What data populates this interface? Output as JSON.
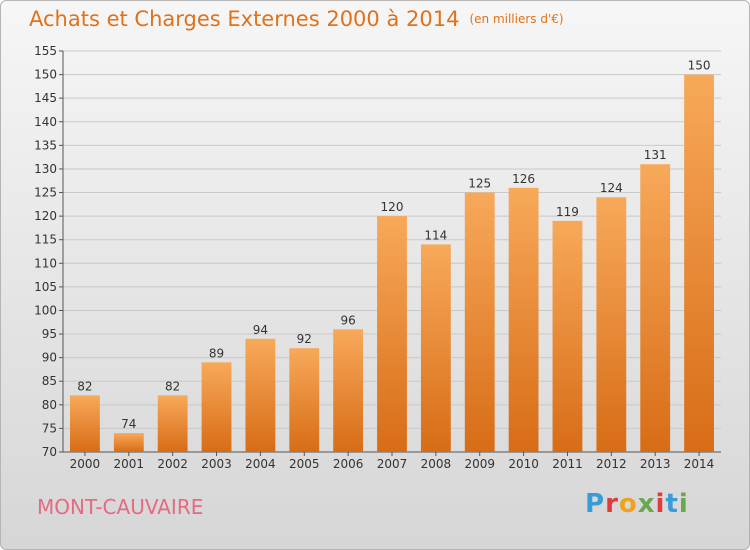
{
  "title": "Achats et Charges Externes 2000 à 2014",
  "subtitle": "(en milliers d'€)",
  "commune": "MONT-CAUVAIRE",
  "logo": {
    "text": "Proxiti",
    "letters": [
      "P",
      "r",
      "o",
      "x",
      "i",
      "t",
      "i"
    ],
    "colors": [
      "#3a9bd9",
      "#e23b3b",
      "#f0a21f",
      "#6aa84f",
      "#e23b3b",
      "#3a9bd9",
      "#6aa84f"
    ]
  },
  "colors": {
    "title": "#e0721a",
    "bar_top": "#f7a95a",
    "bar_bottom": "#d86c16",
    "commune": "#e56a82"
  },
  "chart_data": {
    "type": "bar",
    "categories": [
      "2000",
      "2001",
      "2002",
      "2003",
      "2004",
      "2005",
      "2006",
      "2007",
      "2008",
      "2009",
      "2010",
      "2011",
      "2012",
      "2013",
      "2014"
    ],
    "values": [
      82,
      74,
      82,
      89,
      94,
      92,
      96,
      120,
      114,
      125,
      126,
      119,
      124,
      131,
      150
    ],
    "title": "Achats et Charges Externes 2000 à 2014",
    "ylim": [
      70,
      155
    ],
    "yticks": [
      70,
      75,
      80,
      85,
      90,
      95,
      100,
      105,
      110,
      115,
      120,
      125,
      130,
      135,
      140,
      145,
      150,
      155
    ],
    "grid": true,
    "data_labels": true
  }
}
